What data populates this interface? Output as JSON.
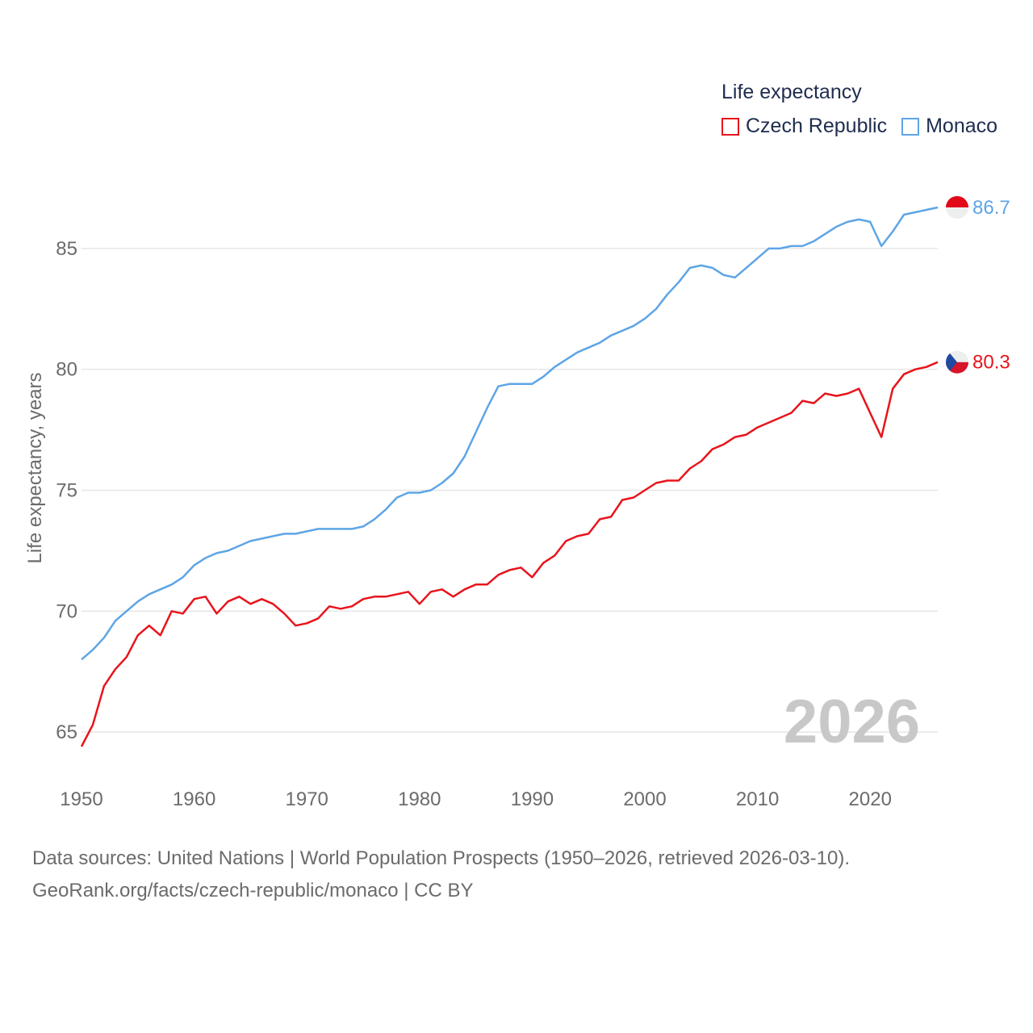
{
  "legend": {
    "title": "Life expectancy",
    "items": [
      {
        "label": "Czech Republic",
        "color": "#e8141c"
      },
      {
        "label": "Monaco",
        "color": "#5ea5e6"
      }
    ]
  },
  "year_label": "2026",
  "source": {
    "line1": "Data sources: United Nations | World Population Prospects (1950–2026, retrieved 2026-03-10).",
    "line2": "GeoRank.org/facts/czech-republic/monaco | CC BY"
  },
  "chart_data": {
    "type": "line",
    "title": "Life expectancy",
    "xlabel": "",
    "ylabel": "Life expectancy, years",
    "xlim": [
      1950,
      2026
    ],
    "ylim": [
      63.4,
      87.6
    ],
    "x_ticks": [
      1950,
      1960,
      1970,
      1980,
      1990,
      2000,
      2010,
      2020
    ],
    "y_ticks": [
      65,
      70,
      75,
      80,
      85
    ],
    "grid": true,
    "x": [
      1950,
      1951,
      1952,
      1953,
      1954,
      1955,
      1956,
      1957,
      1958,
      1959,
      1960,
      1961,
      1962,
      1963,
      1964,
      1965,
      1966,
      1967,
      1968,
      1969,
      1970,
      1971,
      1972,
      1973,
      1974,
      1975,
      1976,
      1977,
      1978,
      1979,
      1980,
      1981,
      1982,
      1983,
      1984,
      1985,
      1986,
      1987,
      1988,
      1989,
      1990,
      1991,
      1992,
      1993,
      1994,
      1995,
      1996,
      1997,
      1998,
      1999,
      2000,
      2001,
      2002,
      2003,
      2004,
      2005,
      2006,
      2007,
      2008,
      2009,
      2010,
      2011,
      2012,
      2013,
      2014,
      2015,
      2016,
      2017,
      2018,
      2019,
      2020,
      2021,
      2022,
      2023,
      2024,
      2025,
      2026
    ],
    "series": [
      {
        "name": "Czech Republic",
        "color": "#e8141c",
        "end_label": "80.3",
        "values": [
          64.4,
          65.3,
          66.9,
          67.6,
          68.1,
          69.0,
          69.4,
          69.0,
          70.0,
          69.9,
          70.5,
          70.6,
          69.9,
          70.4,
          70.6,
          70.3,
          70.5,
          70.3,
          69.9,
          69.4,
          69.5,
          69.7,
          70.2,
          70.1,
          70.2,
          70.5,
          70.6,
          70.6,
          70.7,
          70.8,
          70.3,
          70.8,
          70.9,
          70.6,
          70.9,
          71.1,
          71.1,
          71.5,
          71.7,
          71.8,
          71.4,
          72.0,
          72.3,
          72.9,
          73.1,
          73.2,
          73.8,
          73.9,
          74.6,
          74.7,
          75.0,
          75.3,
          75.4,
          75.4,
          75.9,
          76.2,
          76.7,
          76.9,
          77.2,
          77.3,
          77.6,
          77.8,
          78.0,
          78.2,
          78.7,
          78.6,
          79.0,
          78.9,
          79.0,
          79.2,
          78.2,
          77.2,
          79.2,
          79.8,
          80.0,
          80.1,
          80.3
        ]
      },
      {
        "name": "Monaco",
        "color": "#5ea5e6",
        "end_label": "86.7",
        "values": [
          68.0,
          68.4,
          68.9,
          69.6,
          70.0,
          70.4,
          70.7,
          70.9,
          71.1,
          71.4,
          71.9,
          72.2,
          72.4,
          72.5,
          72.7,
          72.9,
          73.0,
          73.1,
          73.2,
          73.2,
          73.3,
          73.4,
          73.4,
          73.4,
          73.4,
          73.5,
          73.8,
          74.2,
          74.7,
          74.9,
          74.9,
          75.0,
          75.3,
          75.7,
          76.4,
          77.4,
          78.4,
          79.3,
          79.4,
          79.4,
          79.4,
          79.7,
          80.1,
          80.4,
          80.7,
          80.9,
          81.1,
          81.4,
          81.6,
          81.8,
          82.1,
          82.5,
          83.1,
          83.6,
          84.2,
          84.3,
          84.2,
          83.9,
          83.8,
          84.2,
          84.6,
          85.0,
          85.0,
          85.1,
          85.1,
          85.3,
          85.6,
          85.9,
          86.1,
          86.2,
          86.1,
          85.1,
          85.7,
          86.4,
          86.5,
          86.6,
          86.7
        ]
      }
    ]
  }
}
